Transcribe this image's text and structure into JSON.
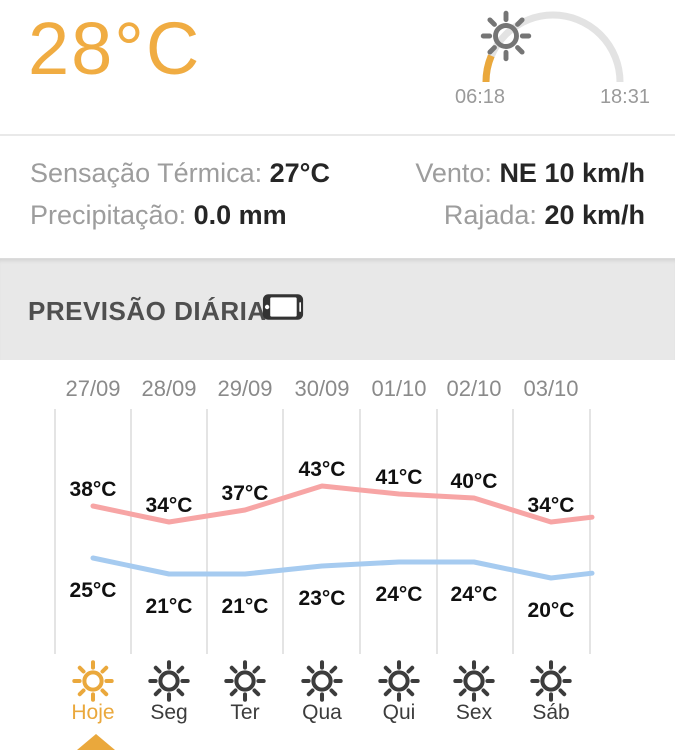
{
  "current": {
    "temperature": "28°C",
    "sunrise": "06:18",
    "sunset": "18:31"
  },
  "details": {
    "feels_like_label": "Sensação Térmica:",
    "feels_like_value": "27°C",
    "precipitation_label": "Precipitação:",
    "precipitation_value": "0.0 mm",
    "wind_label": "Vento:",
    "wind_value": "NE 10 km/h",
    "gust_label": "Rajada:",
    "gust_value": "20 km/h"
  },
  "forecast": {
    "title": "PREVISÃO DIÁRIA",
    "rotate_icon": "rotate-phone-landscape-icon"
  },
  "chart_data": {
    "type": "line",
    "categories": [
      "27/09",
      "28/09",
      "29/09",
      "30/09",
      "01/10",
      "02/10",
      "03/10"
    ],
    "day_labels": [
      "Hoje",
      "Seg",
      "Ter",
      "Qua",
      "Qui",
      "Sex",
      "Sáb"
    ],
    "day_icons": [
      "sun-icon",
      "sun-icon",
      "sun-icon",
      "sun-icon",
      "sun-icon",
      "sun-icon",
      "sun-icon"
    ],
    "selected_day_index": 0,
    "unit": "°C",
    "series": [
      {
        "name": "max",
        "color": "#F7A5A5",
        "values": [
          38,
          34,
          37,
          43,
          41,
          40,
          34
        ],
        "edge_value": 35.2
      },
      {
        "name": "min",
        "color": "#A6CBF0",
        "values": [
          25,
          21,
          21,
          23,
          24,
          24,
          20
        ],
        "edge_value": 21.2
      }
    ],
    "max_labels": [
      "38°C",
      "34°C",
      "37°C",
      "43°C",
      "41°C",
      "40°C",
      "34°C"
    ],
    "min_labels": [
      "25°C",
      "21°C",
      "21°C",
      "23°C",
      "24°C",
      "24°C",
      "20°C"
    ],
    "legend": "none",
    "grid": "vertical"
  },
  "colors": {
    "accent_amber": "#EAA83C",
    "big_temp": "#F0AC42",
    "max_line": "#F7A5A5",
    "min_line": "#A6CBF0",
    "band_bg": "#E8E8E8",
    "gridline": "#e4e4e4",
    "muted_text": "#9d9d9d",
    "dark_text": "#262626"
  }
}
